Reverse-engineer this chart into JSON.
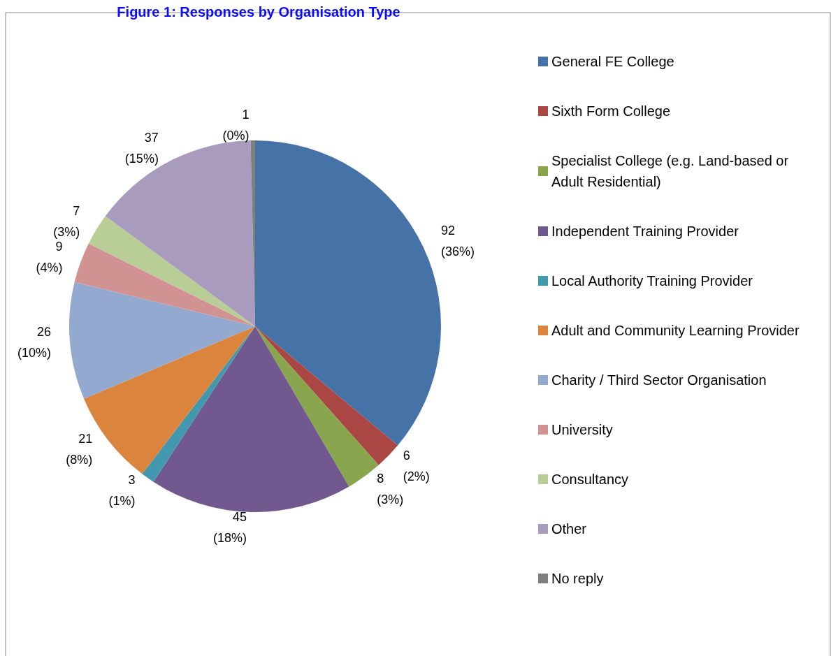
{
  "chart_data": {
    "type": "pie",
    "title": "Figure 1: Responses by Organisation Type",
    "categories": [
      "General FE College",
      "Sixth Form College",
      "Specialist College (e.g. Land-based or Adult Residential)",
      "Independent Training Provider",
      "Local Authority Training Provider",
      "Adult and Community Learning Provider",
      "Charity / Third Sector Organisation",
      "University",
      "Consultancy",
      "Other",
      "No reply"
    ],
    "values": [
      92,
      6,
      8,
      45,
      3,
      21,
      26,
      9,
      7,
      37,
      1
    ],
    "value_labels": [
      "92 (36%)",
      "6 (2%)",
      "8 (3%)",
      "45 (18%)",
      "3 (1%)",
      "21 (8%)",
      "26 (10%)",
      "9 (4%)",
      "7 (3%)",
      "37 (15%)",
      "1 (0%)"
    ],
    "colors": [
      "#4572a7",
      "#aa4643",
      "#89a54e",
      "#71588f",
      "#4198af",
      "#db843d",
      "#93a9cf",
      "#d19392",
      "#b9cd96",
      "#a99bbd",
      "#7f7f7f"
    ],
    "legend": "right"
  }
}
